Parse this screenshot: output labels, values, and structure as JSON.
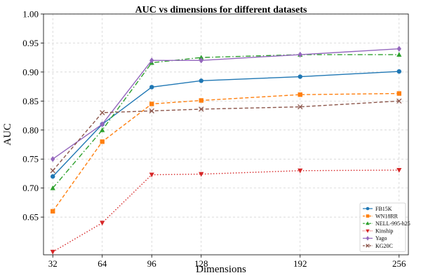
{
  "chart_data": {
    "type": "line",
    "title": "AUC vs dimensions for different datasets",
    "xlabel": "Dimensions",
    "ylabel": "AUC",
    "x": [
      32,
      64,
      96,
      128,
      192,
      256
    ],
    "xticks": [
      "32",
      "64",
      "96",
      "128",
      "192",
      "256"
    ],
    "xlim": [
      26,
      262
    ],
    "ylim": [
      0.585,
      1.0
    ],
    "yticks": [
      "0.65",
      "0.70",
      "0.75",
      "0.80",
      "0.85",
      "0.90",
      "0.95",
      "1.00"
    ],
    "ytick_values": [
      0.65,
      0.7,
      0.75,
      0.8,
      0.85,
      0.9,
      0.95,
      1.0
    ],
    "grid": true,
    "legend_position": "bottom-right",
    "series": [
      {
        "name": "FB15K",
        "color": "#1f77b4",
        "marker": "circle",
        "linestyle": "solid",
        "values": [
          0.72,
          0.81,
          0.874,
          0.885,
          0.892,
          0.901
        ]
      },
      {
        "name": "WN18RR",
        "color": "#ff7f0e",
        "marker": "square",
        "linestyle": "dashed",
        "values": [
          0.66,
          0.78,
          0.845,
          0.851,
          0.861,
          0.863
        ]
      },
      {
        "name": "NELL-995-h25",
        "color": "#2ca02c",
        "marker": "triangle-up",
        "linestyle": "dashdot",
        "values": [
          0.7,
          0.8,
          0.916,
          0.925,
          0.93,
          0.93
        ]
      },
      {
        "name": "Kinship",
        "color": "#d62728",
        "marker": "triangle-down",
        "linestyle": "dotted",
        "values": [
          0.59,
          0.64,
          0.723,
          0.724,
          0.73,
          0.731
        ]
      },
      {
        "name": "Yago",
        "color": "#9467bd",
        "marker": "diamond",
        "linestyle": "solid",
        "values": [
          0.75,
          0.81,
          0.92,
          0.92,
          0.93,
          0.94
        ]
      },
      {
        "name": "KG20C",
        "color": "#8c564b",
        "marker": "x",
        "linestyle": "dashed",
        "values": [
          0.73,
          0.83,
          0.833,
          0.836,
          0.84,
          0.85
        ]
      }
    ]
  }
}
